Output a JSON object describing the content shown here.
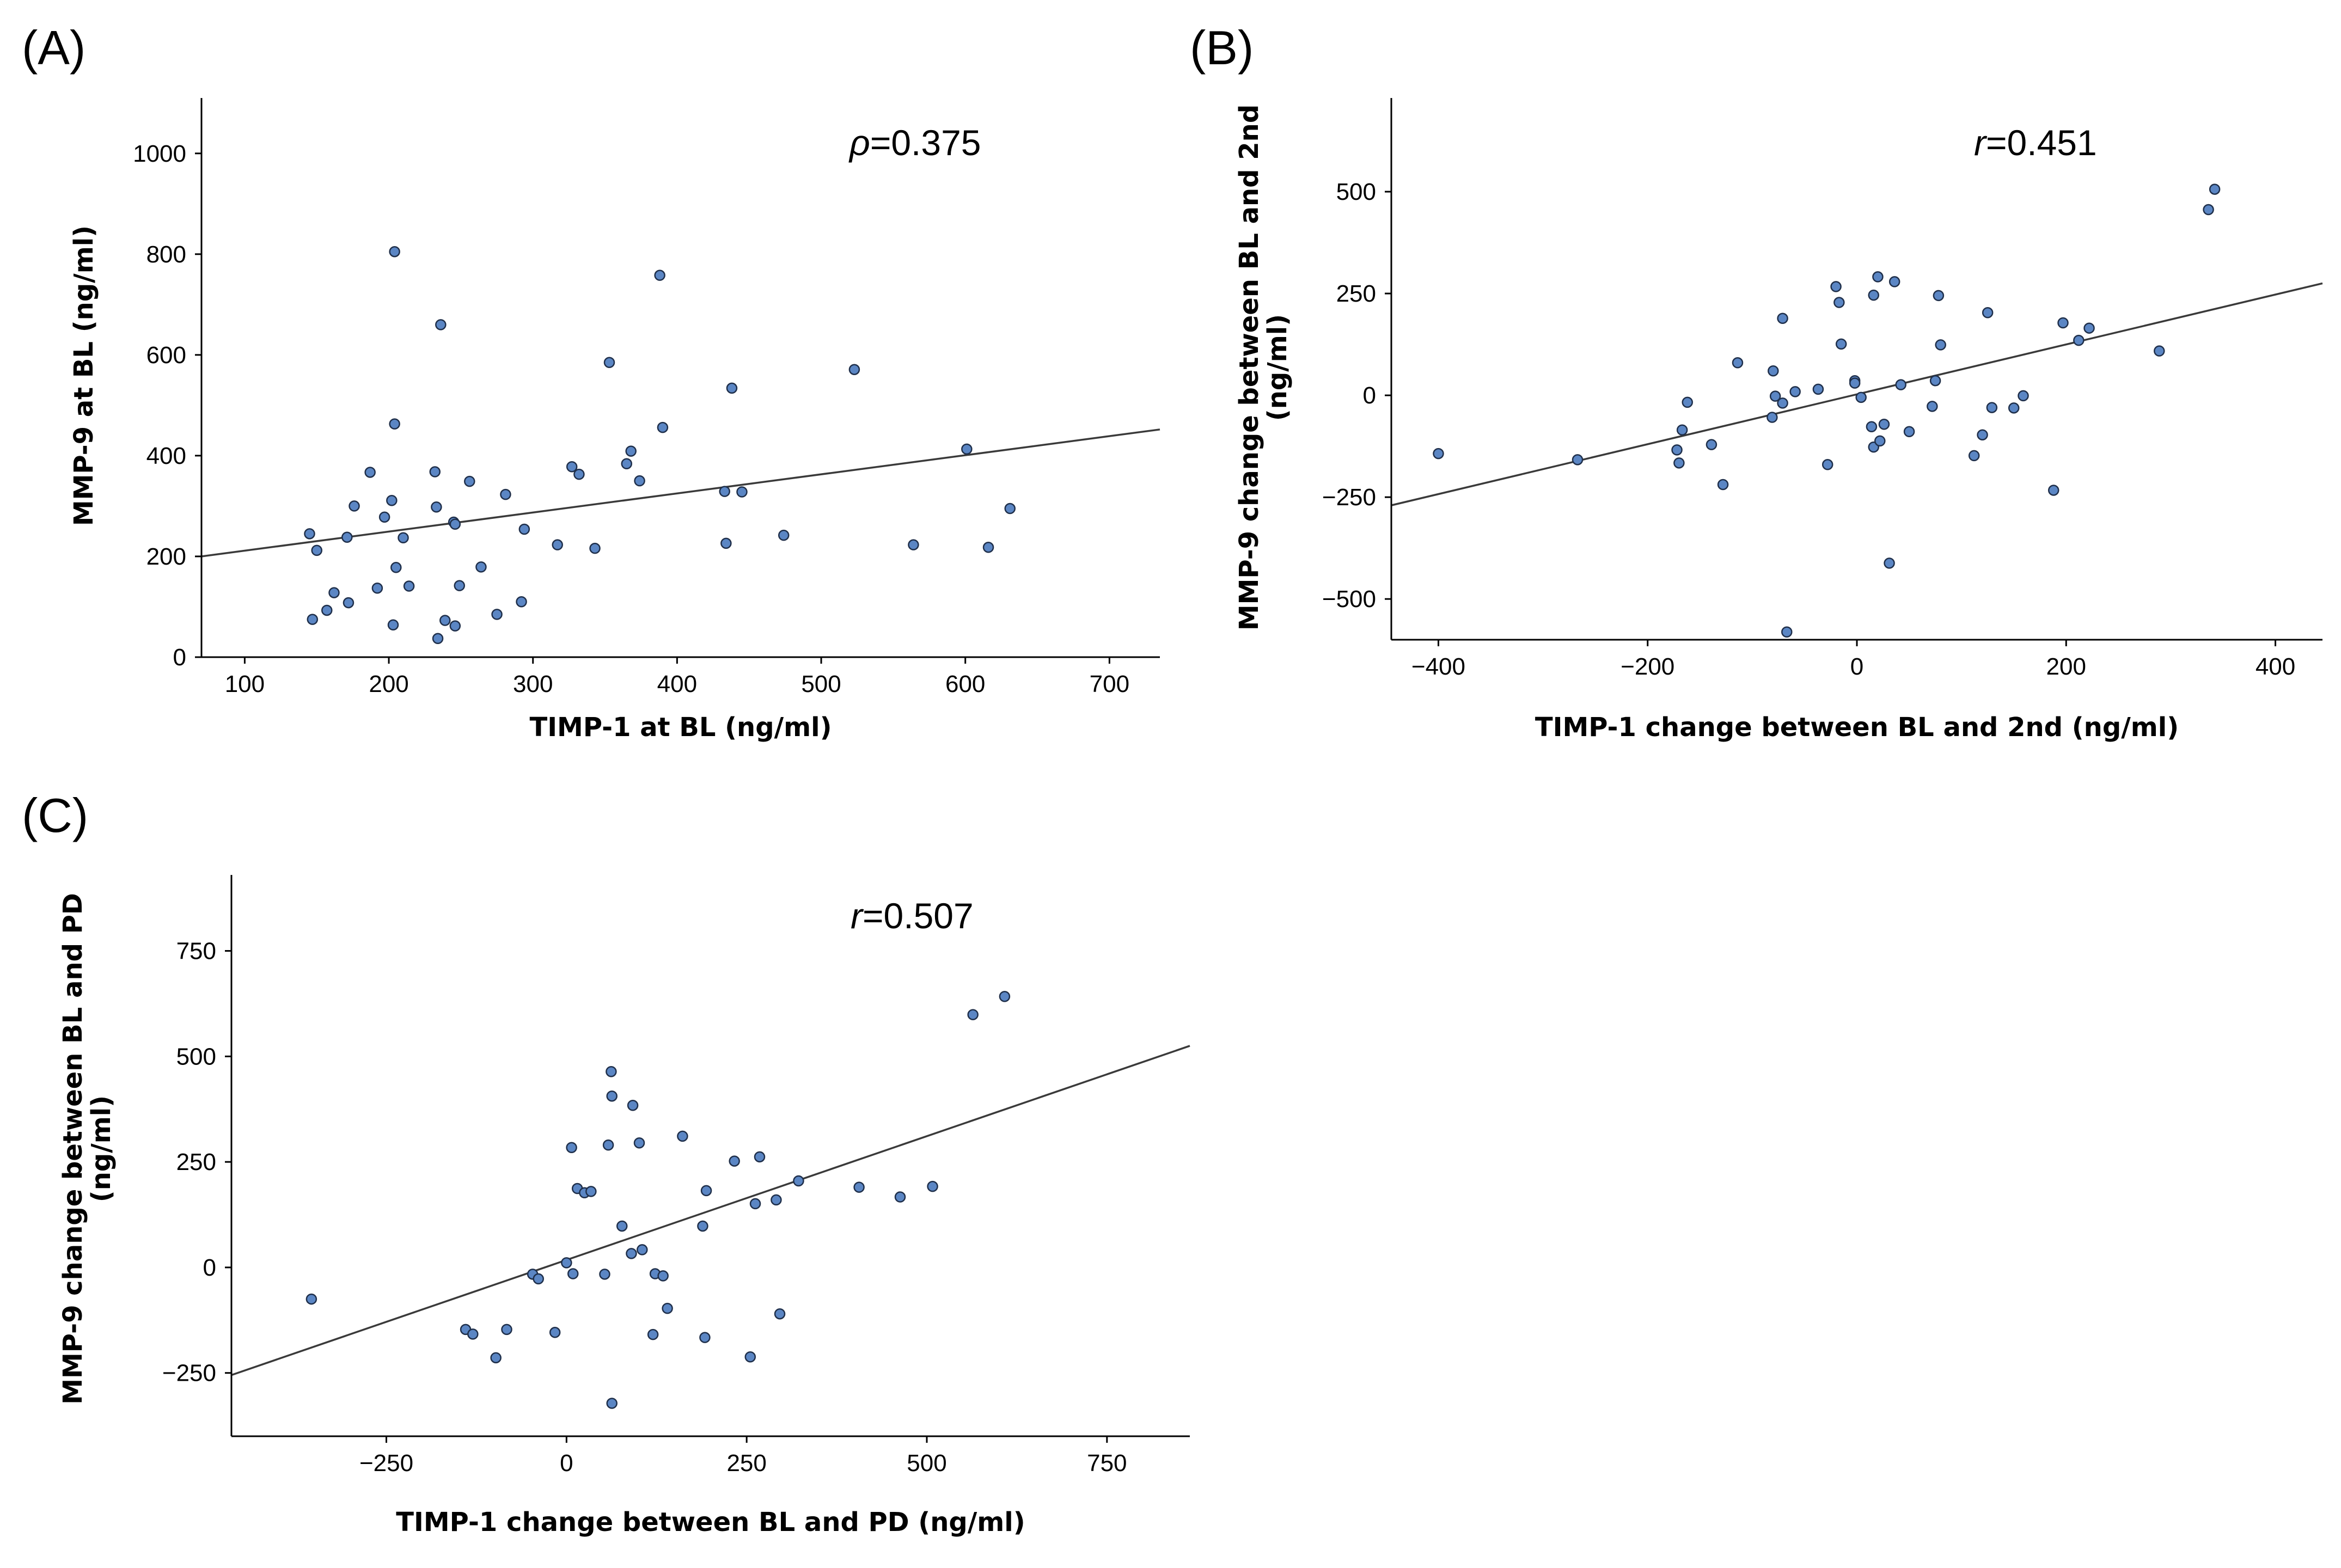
{
  "colors": {
    "point_fill": "#5b86c4",
    "point_stroke": "#1f2f4a",
    "fit_line": "#3a3a3a",
    "axis": "#000000"
  },
  "chart_data": [
    {
      "panel": "(A)",
      "type": "scatter",
      "xlabel": "TIMP-1 at BL (ng/ml)",
      "ylabel": "MMP-9 at BL (ng/ml)",
      "ylabel2": "",
      "stat_symbol": "ρ",
      "stat_value": "=0.375",
      "xlim": [
        70,
        735
      ],
      "ylim": [
        0,
        1110
      ],
      "xticks": [
        100,
        200,
        300,
        400,
        500,
        600,
        700
      ],
      "yticks": [
        0,
        200,
        400,
        600,
        800,
        1000
      ],
      "grid": false,
      "trendline": {
        "x": [
          70,
          735
        ],
        "y": [
          200,
          452
        ]
      },
      "points": [
        {
          "x": 145,
          "y": 245
        },
        {
          "x": 147,
          "y": 75
        },
        {
          "x": 150,
          "y": 212
        },
        {
          "x": 157,
          "y": 93
        },
        {
          "x": 162,
          "y": 128
        },
        {
          "x": 171,
          "y": 238
        },
        {
          "x": 172,
          "y": 108
        },
        {
          "x": 176,
          "y": 300
        },
        {
          "x": 187,
          "y": 367
        },
        {
          "x": 192,
          "y": 137
        },
        {
          "x": 197,
          "y": 278
        },
        {
          "x": 202,
          "y": 311
        },
        {
          "x": 203,
          "y": 64
        },
        {
          "x": 204,
          "y": 805
        },
        {
          "x": 204,
          "y": 463
        },
        {
          "x": 205,
          "y": 178
        },
        {
          "x": 210,
          "y": 237
        },
        {
          "x": 214,
          "y": 141
        },
        {
          "x": 232,
          "y": 368
        },
        {
          "x": 233,
          "y": 298
        },
        {
          "x": 234,
          "y": 37
        },
        {
          "x": 236,
          "y": 660
        },
        {
          "x": 239,
          "y": 73
        },
        {
          "x": 245,
          "y": 268
        },
        {
          "x": 246,
          "y": 264
        },
        {
          "x": 246,
          "y": 62
        },
        {
          "x": 249,
          "y": 142
        },
        {
          "x": 256,
          "y": 349
        },
        {
          "x": 264,
          "y": 179
        },
        {
          "x": 275,
          "y": 85
        },
        {
          "x": 281,
          "y": 323
        },
        {
          "x": 292,
          "y": 110
        },
        {
          "x": 294,
          "y": 254
        },
        {
          "x": 317,
          "y": 223
        },
        {
          "x": 327,
          "y": 378
        },
        {
          "x": 332,
          "y": 363
        },
        {
          "x": 343,
          "y": 216
        },
        {
          "x": 353,
          "y": 585
        },
        {
          "x": 365,
          "y": 384
        },
        {
          "x": 368,
          "y": 409
        },
        {
          "x": 374,
          "y": 350
        },
        {
          "x": 388,
          "y": 758
        },
        {
          "x": 390,
          "y": 456
        },
        {
          "x": 433,
          "y": 329
        },
        {
          "x": 434,
          "y": 226
        },
        {
          "x": 438,
          "y": 534
        },
        {
          "x": 445,
          "y": 328
        },
        {
          "x": 474,
          "y": 242
        },
        {
          "x": 523,
          "y": 571
        },
        {
          "x": 564,
          "y": 223
        },
        {
          "x": 601,
          "y": 413
        },
        {
          "x": 616,
          "y": 218
        },
        {
          "x": 631,
          "y": 295
        }
      ]
    },
    {
      "panel": "(B)",
      "type": "scatter",
      "xlabel": "TIMP-1 change between BL and 2nd (ng/ml)",
      "ylabel": "MMP-9 change between BL and 2nd",
      "ylabel2": "(ng/ml)",
      "stat_symbol": "r",
      "stat_value": "=0.451",
      "xlim": [
        -445,
        445
      ],
      "ylim": [
        -600,
        730
      ],
      "xticks": [
        -400,
        -200,
        0,
        200,
        400
      ],
      "yticks": [
        -500,
        -250,
        0,
        250,
        500
      ],
      "grid": false,
      "trendline": {
        "x": [
          -445,
          445
        ],
        "y": [
          -270,
          275
        ]
      },
      "points": [
        {
          "x": -400,
          "y": -143
        },
        {
          "x": -267,
          "y": -158
        },
        {
          "x": -172,
          "y": -134
        },
        {
          "x": -170,
          "y": -166
        },
        {
          "x": -167,
          "y": -85
        },
        {
          "x": -162,
          "y": -17
        },
        {
          "x": -139,
          "y": -121
        },
        {
          "x": -128,
          "y": -219
        },
        {
          "x": -114,
          "y": 80
        },
        {
          "x": -81,
          "y": -54
        },
        {
          "x": -80,
          "y": 60
        },
        {
          "x": -78,
          "y": -2
        },
        {
          "x": -71,
          "y": -19
        },
        {
          "x": -71,
          "y": 189
        },
        {
          "x": -67,
          "y": -581
        },
        {
          "x": -59,
          "y": 9
        },
        {
          "x": -37,
          "y": 15
        },
        {
          "x": -28,
          "y": -170
        },
        {
          "x": -20,
          "y": 267
        },
        {
          "x": -17,
          "y": 228
        },
        {
          "x": -15,
          "y": 126
        },
        {
          "x": -2,
          "y": 36
        },
        {
          "x": -2,
          "y": 30
        },
        {
          "x": 4,
          "y": -5
        },
        {
          "x": 14,
          "y": -77
        },
        {
          "x": 16,
          "y": -127
        },
        {
          "x": 16,
          "y": 246
        },
        {
          "x": 20,
          "y": 291
        },
        {
          "x": 22,
          "y": -112
        },
        {
          "x": 26,
          "y": -71
        },
        {
          "x": 31,
          "y": -412
        },
        {
          "x": 36,
          "y": 279
        },
        {
          "x": 42,
          "y": 26
        },
        {
          "x": 50,
          "y": -89
        },
        {
          "x": 72,
          "y": -27
        },
        {
          "x": 75,
          "y": 36
        },
        {
          "x": 78,
          "y": 245
        },
        {
          "x": 80,
          "y": 124
        },
        {
          "x": 112,
          "y": -148
        },
        {
          "x": 120,
          "y": -97
        },
        {
          "x": 125,
          "y": 203
        },
        {
          "x": 129,
          "y": -30
        },
        {
          "x": 150,
          "y": -31
        },
        {
          "x": 159,
          "y": -1
        },
        {
          "x": 188,
          "y": -233
        },
        {
          "x": 197,
          "y": 178
        },
        {
          "x": 212,
          "y": 135
        },
        {
          "x": 222,
          "y": 165
        },
        {
          "x": 289,
          "y": 109
        },
        {
          "x": 336,
          "y": 456
        },
        {
          "x": 342,
          "y": 506
        }
      ]
    },
    {
      "panel": "(C)",
      "type": "scatter",
      "xlabel": "TIMP-1 change between BL and PD (ng/ml)",
      "ylabel": "MMP-9 change between BL and PD",
      "ylabel2": "(ng/ml)",
      "stat_symbol": "r",
      "stat_value": "=0.507",
      "xlim": [
        -465,
        865
      ],
      "ylim": [
        -400,
        930
      ],
      "xticks": [
        -250,
        0,
        250,
        500,
        750
      ],
      "yticks": [
        -250,
        0,
        250,
        500,
        750
      ],
      "grid": false,
      "trendline": {
        "x": [
          -465,
          865
        ],
        "y": [
          -255,
          525
        ]
      },
      "points": [
        {
          "x": -354,
          "y": -75
        },
        {
          "x": -140,
          "y": -147
        },
        {
          "x": -130,
          "y": -158
        },
        {
          "x": -98,
          "y": -214
        },
        {
          "x": -83,
          "y": -147
        },
        {
          "x": -47,
          "y": -16
        },
        {
          "x": -39,
          "y": -27
        },
        {
          "x": -16,
          "y": -154
        },
        {
          "x": 0,
          "y": 11
        },
        {
          "x": 7,
          "y": 284
        },
        {
          "x": 9,
          "y": -15
        },
        {
          "x": 15,
          "y": 187
        },
        {
          "x": 25,
          "y": 177
        },
        {
          "x": 34,
          "y": 180
        },
        {
          "x": 53,
          "y": -16
        },
        {
          "x": 58,
          "y": 290
        },
        {
          "x": 62,
          "y": 464
        },
        {
          "x": 63,
          "y": 406
        },
        {
          "x": 63,
          "y": -322
        },
        {
          "x": 77,
          "y": 98
        },
        {
          "x": 90,
          "y": 33
        },
        {
          "x": 92,
          "y": 384
        },
        {
          "x": 101,
          "y": 295
        },
        {
          "x": 105,
          "y": 42
        },
        {
          "x": 120,
          "y": -159
        },
        {
          "x": 123,
          "y": -15
        },
        {
          "x": 134,
          "y": -20
        },
        {
          "x": 140,
          "y": -97
        },
        {
          "x": 161,
          "y": 311
        },
        {
          "x": 189,
          "y": 98
        },
        {
          "x": 192,
          "y": -166
        },
        {
          "x": 194,
          "y": 182
        },
        {
          "x": 233,
          "y": 252
        },
        {
          "x": 255,
          "y": -212
        },
        {
          "x": 262,
          "y": 151
        },
        {
          "x": 268,
          "y": 262
        },
        {
          "x": 291,
          "y": 160
        },
        {
          "x": 296,
          "y": -110
        },
        {
          "x": 322,
          "y": 205
        },
        {
          "x": 406,
          "y": 190
        },
        {
          "x": 463,
          "y": 167
        },
        {
          "x": 508,
          "y": 192
        },
        {
          "x": 564,
          "y": 599
        },
        {
          "x": 608,
          "y": 642
        }
      ]
    }
  ]
}
